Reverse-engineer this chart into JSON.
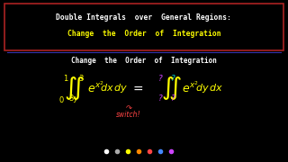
{
  "bg_color": "#000000",
  "box_edge_color": "#AA2222",
  "title_line1": "Double Integrals  over  General Regions:",
  "title_line2": "Change  the  Order  of  Integration",
  "title_line1_color": "#FFFFFF",
  "title_line2_color": "#FFFF00",
  "subtitle": "Change  the  Order  of  Integration",
  "subtitle_color": "#FFFFFF",
  "integral_color": "#FFFF00",
  "equals_color": "#FFFFFF",
  "question_color": "#CC44FF",
  "question_color2": "#00CCCC",
  "switch_color": "#FF4444",
  "separator_color": "#3333AA",
  "dot_colors": [
    "#FFFFFF",
    "#AAAAAA",
    "#FFFF00",
    "#FF8800",
    "#FF4444",
    "#4488FF",
    "#CC44FF"
  ],
  "figsize": [
    3.2,
    1.8
  ],
  "dpi": 100
}
